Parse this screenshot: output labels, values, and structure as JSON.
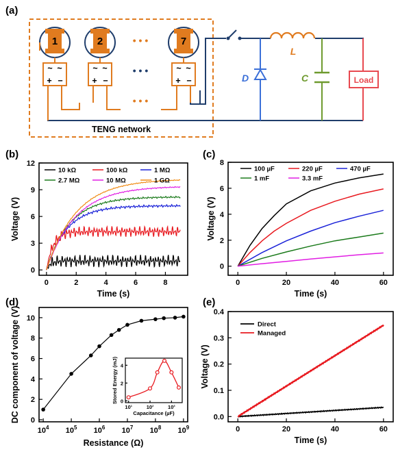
{
  "panel_labels": [
    "(a)",
    "(b)",
    "(c)",
    "(d)",
    "(e)"
  ],
  "circuit": {
    "units": [
      "1",
      "2",
      "7"
    ],
    "dots": "• • •",
    "network_label": "TENG network",
    "inductor_label": "L",
    "diode_label": "D",
    "capacitor_label": "C",
    "load_label": "Load",
    "colors": {
      "network": "#E07B1F",
      "wire": "#1F3D6B",
      "inductor": "#E07B1F",
      "diode": "#3A6FD8",
      "capacitor": "#6E9A2E",
      "load": "#E8484F"
    }
  },
  "chart_data": [
    {
      "panel": "(b)",
      "type": "line",
      "xlabel": "Time (s)",
      "ylabel": "Voltage (V)",
      "xlim": [
        -0.5,
        9.5
      ],
      "ylim": [
        -0.6,
        12
      ],
      "xticks": [
        0,
        2,
        4,
        6,
        8
      ],
      "yticks": [
        0,
        3,
        6,
        9,
        12
      ],
      "legend_position": "top",
      "series": [
        {
          "name": "10 kΩ",
          "color": "#000000",
          "plateau": 1.0,
          "tau": 0.25,
          "noise": 0.7
        },
        {
          "name": "100 kΩ",
          "color": "#E8191F",
          "plateau": 4.3,
          "tau": 0.45,
          "noise": 0.6
        },
        {
          "name": "1 MΩ",
          "color": "#1A22D8",
          "plateau": 7.2,
          "tau": 1.35,
          "noise": 0.25
        },
        {
          "name": "2.7 MΩ",
          "color": "#1A7A1A",
          "plateau": 8.2,
          "tau": 1.55,
          "noise": 0.18
        },
        {
          "name": "10 MΩ",
          "color": "#E11DE3",
          "plateau": 9.4,
          "tau": 1.95,
          "noise": 0.1
        },
        {
          "name": "1 GΩ",
          "color": "#F08A12",
          "plateau": 10.2,
          "tau": 2.0,
          "noise": 0.08
        }
      ]
    },
    {
      "panel": "(c)",
      "type": "line",
      "xlabel": "Time (s)",
      "ylabel": "Voltage (V)",
      "xlim": [
        -4,
        64
      ],
      "ylim": [
        -0.7,
        8
      ],
      "xticks": [
        0,
        20,
        40,
        60
      ],
      "yticks": [
        0,
        2,
        4,
        6,
        8
      ],
      "legend_position": "top",
      "series": [
        {
          "name": "100 µF",
          "color": "#000000",
          "x": [
            0,
            5,
            10,
            15,
            20,
            30,
            40,
            50,
            60
          ],
          "y": [
            0,
            1.6,
            2.9,
            3.9,
            4.8,
            5.8,
            6.4,
            6.8,
            7.1
          ]
        },
        {
          "name": "220 µF",
          "color": "#E8191F",
          "x": [
            0,
            5,
            10,
            15,
            20,
            30,
            40,
            50,
            60
          ],
          "y": [
            0,
            1.05,
            1.95,
            2.7,
            3.3,
            4.3,
            5.0,
            5.55,
            5.95
          ]
        },
        {
          "name": "470 µF",
          "color": "#1A22D8",
          "x": [
            0,
            10,
            20,
            30,
            40,
            50,
            60
          ],
          "y": [
            0,
            1.05,
            1.95,
            2.7,
            3.35,
            3.85,
            4.3
          ]
        },
        {
          "name": "1 mF",
          "color": "#1A7A1A",
          "x": [
            0,
            10,
            20,
            30,
            40,
            50,
            60
          ],
          "y": [
            0,
            0.6,
            1.1,
            1.55,
            1.95,
            2.25,
            2.55
          ]
        },
        {
          "name": "3.3 mF",
          "color": "#E11DE3",
          "x": [
            0,
            10,
            20,
            30,
            40,
            50,
            60
          ],
          "y": [
            0,
            0.19,
            0.37,
            0.55,
            0.72,
            0.88,
            1.02
          ]
        }
      ]
    },
    {
      "panel": "(d)",
      "type": "scatter",
      "xlabel": "Resistance (Ω)",
      "ylabel": "DC component of voltage (V)",
      "xscale": "log",
      "xlim_exp": [
        3.85,
        9.15
      ],
      "ylim": [
        -0.2,
        11
      ],
      "xticks_exp": [
        4,
        5,
        6,
        7,
        8,
        9
      ],
      "yticks": [
        0,
        2,
        4,
        6,
        8,
        10
      ],
      "x_exp": [
        4,
        5,
        5.7,
        6,
        6.43,
        6.7,
        7,
        7.5,
        8,
        8.3,
        8.7,
        9
      ],
      "y": [
        1.0,
        4.5,
        6.3,
        7.2,
        8.3,
        8.8,
        9.3,
        9.7,
        9.85,
        9.95,
        10.0,
        10.1
      ],
      "inset": {
        "type": "scatter",
        "xlabel": "Capacitance (µF)",
        "ylabel": "Stored Energy (mJ)",
        "xscale": "log",
        "xlim_exp": [
          0.85,
          3.5
        ],
        "ylim": [
          -0.2,
          4.8
        ],
        "xticks_exp": [
          1,
          2,
          3
        ],
        "yticks": [
          0,
          2,
          4
        ],
        "x_exp": [
          1,
          2,
          2.34,
          2.67,
          3,
          3.34
        ],
        "y": [
          0.4,
          1.4,
          3.2,
          4.5,
          3.2,
          1.5
        ],
        "color": "#E8191F"
      }
    },
    {
      "panel": "(e)",
      "type": "line",
      "xlabel": "Time (s)",
      "ylabel": "Voltage (V)",
      "xlim": [
        -4,
        64
      ],
      "ylim": [
        -0.02,
        0.4
      ],
      "xticks": [
        0,
        20,
        40,
        60
      ],
      "yticks": [
        0.0,
        0.1,
        0.2,
        0.3,
        0.4
      ],
      "legend_position": "top-left",
      "series": [
        {
          "name": "Direct",
          "color": "#000000",
          "x": [
            0,
            60
          ],
          "y": [
            0,
            0.035
          ]
        },
        {
          "name": "Managed",
          "color": "#E8191F",
          "x": [
            0,
            60
          ],
          "y": [
            0,
            0.348
          ]
        }
      ]
    }
  ]
}
